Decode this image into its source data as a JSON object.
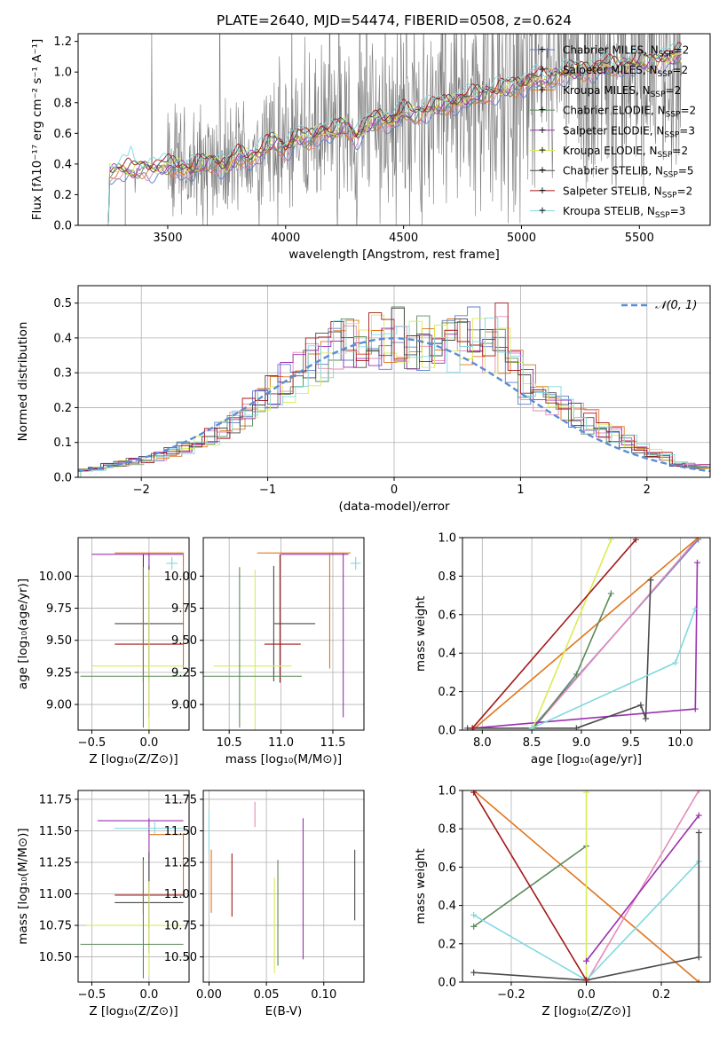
{
  "title": "PLATE=2640, MJD=54474, FIBERID=0508, z=0.624",
  "colors": {
    "chabrier_miles": "#5b7fd0",
    "salpeter_miles": "#e58ab7",
    "kroupa_miles": "#e0751c",
    "chabrier_elodie": "#5b8a5b",
    "salpeter_elodie": "#9b30b0",
    "kroupa_elodie": "#d9ec55",
    "chabrier_stelib": "#4a4a4a",
    "salpeter_stelib": "#a31818",
    "kroupa_stelib": "#80d8e0",
    "data": "#777777"
  },
  "chart_data": [
    {
      "id": "spectrum",
      "type": "line",
      "xlabel": "wavelength [Angstrom, rest frame]",
      "ylabel": "Flux [fλ10⁻¹⁷ erg cm⁻² s⁻¹ A⁻¹]",
      "xlim": [
        3120,
        5800
      ],
      "ylim": [
        0,
        1.25
      ],
      "xticks": [
        3500,
        4000,
        4500,
        5000,
        5500
      ],
      "yticks": [
        0.0,
        0.2,
        0.4,
        0.6,
        0.8,
        1.0,
        1.2
      ],
      "grid": false,
      "legend_position": "top-right",
      "legend": [
        {
          "key": "chabrier_miles",
          "label": "Chabrier MILES, N",
          "sub": "SSP",
          "tail": "=2"
        },
        {
          "key": "salpeter_miles",
          "label": "Salpeter MILES, N",
          "sub": "SSP",
          "tail": "=2"
        },
        {
          "key": "kroupa_miles",
          "label": "Kroupa MILES, N",
          "sub": "SSP",
          "tail": "=2"
        },
        {
          "key": "chabrier_elodie",
          "label": "Chabrier ELODIE, N",
          "sub": "SSP",
          "tail": "=2"
        },
        {
          "key": "salpeter_elodie",
          "label": "Salpeter ELODIE, N",
          "sub": "SSP",
          "tail": "=3"
        },
        {
          "key": "kroupa_elodie",
          "label": "Kroupa ELODIE, N",
          "sub": "SSP",
          "tail": "=2"
        },
        {
          "key": "chabrier_stelib",
          "label": "Chabrier STELIB, N",
          "sub": "SSP",
          "tail": "=5"
        },
        {
          "key": "salpeter_stelib",
          "label": "Salpeter STELIB, N",
          "sub": "SSP",
          "tail": "=2"
        },
        {
          "key": "kroupa_stelib",
          "label": "Kroupa STELIB, N",
          "sub": "SSP",
          "tail": "=3"
        }
      ],
      "model_continuum": {
        "x": [
          3200,
          3250,
          3300,
          3350,
          3400,
          3450,
          3500,
          3550,
          3600,
          3650,
          3700,
          3750,
          3800,
          3850,
          3900,
          3950,
          4000,
          4050,
          4100,
          4150,
          4200,
          4250,
          4300,
          4350,
          4400,
          4450,
          4500,
          4550,
          4600,
          4650,
          4700,
          4750,
          4800,
          4850,
          4900,
          4950,
          5000,
          5050,
          5100,
          5150,
          5200,
          5250,
          5300,
          5350,
          5400,
          5450,
          5500,
          5550,
          5600,
          5650,
          5680
        ],
        "y": [
          0.0,
          0.34,
          0.37,
          0.35,
          0.38,
          0.37,
          0.39,
          0.38,
          0.36,
          0.4,
          0.42,
          0.38,
          0.46,
          0.44,
          0.48,
          0.55,
          0.5,
          0.58,
          0.56,
          0.62,
          0.6,
          0.65,
          0.58,
          0.66,
          0.7,
          0.68,
          0.74,
          0.72,
          0.76,
          0.78,
          0.8,
          0.82,
          0.84,
          0.86,
          0.88,
          0.9,
          0.92,
          0.96,
          0.95,
          0.98,
          1.0,
          1.01,
          1.02,
          1.04,
          1.03,
          1.05,
          1.07,
          1.06,
          1.09,
          1.1,
          1.12
        ]
      }
    },
    {
      "id": "residuals",
      "type": "bar",
      "xlabel": "(data-model)/error",
      "ylabel": "Normed distribution",
      "xlim": [
        -2.5,
        2.5
      ],
      "ylim": [
        0,
        0.55
      ],
      "xticks": [
        -2,
        -1,
        0,
        1,
        2
      ],
      "yticks": [
        0.0,
        0.1,
        0.2,
        0.3,
        0.4,
        0.5
      ],
      "grid": true,
      "legend_position": "top-right",
      "gaussian_label": "𝒩(0, 1)",
      "bin_edges": [
        -2.5,
        -2.4,
        -2.3,
        -2.2,
        -2.1,
        -2.0,
        -1.9,
        -1.8,
        -1.7,
        -1.6,
        -1.5,
        -1.4,
        -1.3,
        -1.2,
        -1.1,
        -1.0,
        -0.9,
        -0.8,
        -0.7,
        -0.6,
        -0.5,
        -0.4,
        -0.3,
        -0.2,
        -0.1,
        0.0,
        0.1,
        0.2,
        0.3,
        0.4,
        0.5,
        0.6,
        0.7,
        0.8,
        0.9,
        1.0,
        1.1,
        1.2,
        1.3,
        1.4,
        1.5,
        1.6,
        1.7,
        1.8,
        1.9,
        2.0,
        2.1,
        2.2,
        2.3,
        2.4,
        2.5
      ],
      "histogram_mean": [
        0.02,
        0.025,
        0.035,
        0.04,
        0.045,
        0.05,
        0.06,
        0.07,
        0.085,
        0.1,
        0.115,
        0.14,
        0.16,
        0.19,
        0.21,
        0.24,
        0.27,
        0.3,
        0.33,
        0.35,
        0.37,
        0.39,
        0.4,
        0.4,
        0.39,
        0.4,
        0.39,
        0.38,
        0.37,
        0.38,
        0.39,
        0.4,
        0.38,
        0.35,
        0.3,
        0.27,
        0.24,
        0.22,
        0.2,
        0.18,
        0.16,
        0.14,
        0.12,
        0.1,
        0.08,
        0.07,
        0.06,
        0.04,
        0.035,
        0.03
      ]
    },
    {
      "id": "age_vs_Z",
      "type": "scatter",
      "xlabel": "Z [log₁₀(Z/Z⊙)]",
      "ylabel": "age  [log₁₀(age/yr)]",
      "xlim": [
        -0.62,
        0.35
      ],
      "ylim": [
        8.8,
        10.3
      ],
      "xticks": [
        -0.5,
        0.0
      ],
      "yticks": [
        9.0,
        9.25,
        9.5,
        9.75,
        10.0
      ],
      "grid": true,
      "errorbars": [
        {
          "key": "salpeter_elodie",
          "x": 0.0,
          "y": 10.17,
          "xerr": [
            0.5,
            0.3
          ],
          "yerr": [
            1.27,
            0.01
          ]
        },
        {
          "key": "kroupa_miles",
          "x": 0.3,
          "y": 10.18,
          "xerr": [
            0.6,
            0.0
          ],
          "yerr": [
            0.9,
            0.0
          ]
        },
        {
          "key": "chabrier_stelib",
          "x": 0.0,
          "y": 9.63,
          "xerr": [
            0.3,
            0.3
          ],
          "yerr": [
            0.45,
            0.45
          ]
        },
        {
          "key": "salpeter_stelib",
          "x": -0.05,
          "y": 9.47,
          "xerr": [
            0.25,
            0.35
          ],
          "yerr": [
            0.3,
            0.7
          ]
        },
        {
          "key": "kroupa_elodie",
          "x": 0.0,
          "y": 9.3,
          "xerr": [
            0.5,
            0.3
          ],
          "yerr": [
            0.5,
            0.75
          ]
        },
        {
          "key": "chabrier_elodie",
          "x": -0.05,
          "y": 9.22,
          "xerr": [
            0.55,
            0.35
          ],
          "yerr": [
            0.4,
            0.85
          ]
        },
        {
          "key": "kroupa_stelib",
          "x": 0.2,
          "y": 10.1,
          "xerr": [
            0.05,
            0.05
          ],
          "yerr": [
            0.05,
            0.05
          ]
        }
      ]
    },
    {
      "id": "age_vs_mass",
      "type": "scatter",
      "xlabel": "mass [log₁₀(M/M⊙)]",
      "xlim": [
        10.25,
        11.8
      ],
      "ylim": [
        8.8,
        10.3
      ],
      "xticks": [
        10.5,
        11.0,
        11.5
      ],
      "yticks": [
        9.0,
        9.25,
        9.5,
        9.75,
        10.0
      ],
      "grid": true,
      "errorbars": [
        {
          "key": "salpeter_elodie",
          "x": 11.6,
          "y": 10.17,
          "xerr": [
            0.6,
            0.05
          ],
          "yerr": [
            1.27,
            0.01
          ]
        },
        {
          "key": "kroupa_miles",
          "x": 11.47,
          "y": 10.18,
          "xerr": [
            0.7,
            0.2
          ],
          "yerr": [
            0.9,
            0.0
          ]
        },
        {
          "key": "chabrier_stelib",
          "x": 10.93,
          "y": 9.63,
          "xerr": [
            0.0,
            0.4
          ],
          "yerr": [
            0.45,
            0.45
          ]
        },
        {
          "key": "salpeter_stelib",
          "x": 10.99,
          "y": 9.47,
          "xerr": [
            0.15,
            0.2
          ],
          "yerr": [
            0.3,
            0.7
          ]
        },
        {
          "key": "kroupa_elodie",
          "x": 10.75,
          "y": 9.3,
          "xerr": [
            0.4,
            0.35
          ],
          "yerr": [
            0.5,
            0.75
          ]
        },
        {
          "key": "chabrier_elodie",
          "x": 10.6,
          "y": 9.22,
          "xerr": [
            0.35,
            0.6
          ],
          "yerr": [
            0.4,
            0.85
          ]
        },
        {
          "key": "kroupa_stelib",
          "x": 11.72,
          "y": 10.1,
          "xerr": [
            0.05,
            0.05
          ],
          "yerr": [
            0.05,
            0.05
          ]
        }
      ]
    },
    {
      "id": "weight_vs_age",
      "type": "line",
      "xlabel": "age  [log₁₀(age/yr)]",
      "ylabel": "mass weight",
      "xlim": [
        7.8,
        10.3
      ],
      "ylim": [
        0,
        1.0
      ],
      "xticks": [
        8.0,
        8.5,
        9.0,
        9.5,
        10.0
      ],
      "yticks": [
        0.0,
        0.2,
        0.4,
        0.6,
        0.8,
        1.0
      ],
      "grid": true,
      "series": [
        {
          "key": "chabrier_miles",
          "x": [
            8.5,
            10.18
          ],
          "y": [
            0.01,
            0.99
          ]
        },
        {
          "key": "salpeter_miles",
          "x": [
            8.5,
            10.18
          ],
          "y": [
            0.0,
            1.0
          ]
        },
        {
          "key": "kroupa_miles",
          "x": [
            7.9,
            10.18
          ],
          "y": [
            0.0,
            1.0
          ]
        },
        {
          "key": "chabrier_elodie",
          "x": [
            8.5,
            8.95,
            9.3
          ],
          "y": [
            0.0,
            0.29,
            0.71
          ]
        },
        {
          "key": "salpeter_elodie",
          "x": [
            7.9,
            10.15,
            10.17
          ],
          "y": [
            0.01,
            0.11,
            0.87
          ]
        },
        {
          "key": "kroupa_elodie",
          "x": [
            8.5,
            9.3
          ],
          "y": [
            0.0,
            0.99
          ]
        },
        {
          "key": "chabrier_stelib",
          "x": [
            7.85,
            8.95,
            9.6,
            9.65,
            9.7
          ],
          "y": [
            0.01,
            0.01,
            0.13,
            0.06,
            0.78
          ]
        },
        {
          "key": "salpeter_stelib",
          "x": [
            7.9,
            9.55
          ],
          "y": [
            0.01,
            0.99
          ]
        },
        {
          "key": "kroupa_stelib",
          "x": [
            8.5,
            9.95,
            10.15
          ],
          "y": [
            0.01,
            0.35,
            0.63
          ]
        }
      ]
    },
    {
      "id": "mass_vs_Z",
      "type": "scatter",
      "xlabel": "Z [log₁₀(Z/Z⊙)]",
      "ylabel": "mass [log₁₀(M/M⊙)]",
      "xlim": [
        -0.62,
        0.35
      ],
      "ylim": [
        10.3,
        11.82
      ],
      "xticks": [
        -0.5,
        0.0
      ],
      "yticks": [
        10.5,
        10.75,
        11.0,
        11.25,
        11.5,
        11.75
      ],
      "grid": true,
      "errorbars": [
        {
          "key": "salpeter_miles",
          "x": 0.25,
          "y": 11.72,
          "xerr": [
            0.05,
            0.05
          ],
          "yerr": [
            0.0,
            0.0
          ]
        },
        {
          "key": "salpeter_elodie",
          "x": 0.0,
          "y": 11.58,
          "xerr": [
            0.45,
            0.3
          ],
          "yerr": [
            1.05,
            0.02
          ]
        },
        {
          "key": "kroupa_stelib",
          "x": 0.05,
          "y": 11.52,
          "xerr": [
            0.35,
            0.25
          ],
          "yerr": [
            0.05,
            0.05
          ]
        },
        {
          "key": "kroupa_miles",
          "x": 0.3,
          "y": 11.47,
          "xerr": [
            0.3,
            0.0
          ],
          "yerr": [
            0.5,
            0.0
          ]
        },
        {
          "key": "chabrier_stelib",
          "x": 0.0,
          "y": 10.93,
          "xerr": [
            0.3,
            0.3
          ],
          "yerr": [
            0.2,
            0.4
          ]
        },
        {
          "key": "salpeter_stelib",
          "x": -0.05,
          "y": 10.99,
          "xerr": [
            0.25,
            0.35
          ],
          "yerr": [
            0.15,
            0.3
          ]
        },
        {
          "key": "kroupa_elodie",
          "x": 0.0,
          "y": 10.75,
          "xerr": [
            0.55,
            0.3
          ],
          "yerr": [
            0.4,
            0.35
          ]
        },
        {
          "key": "chabrier_elodie",
          "x": -0.05,
          "y": 10.6,
          "xerr": [
            0.55,
            0.35
          ],
          "yerr": [
            0.27,
            0.67
          ]
        }
      ]
    },
    {
      "id": "mass_vs_ebv",
      "type": "scatter",
      "xlabel": "E(B-V)",
      "xlim": [
        -0.005,
        0.135
      ],
      "ylim": [
        10.3,
        11.82
      ],
      "xticks": [
        0.0,
        0.05,
        0.1
      ],
      "yticks": [
        10.5,
        10.75,
        11.0,
        11.25,
        11.5,
        11.75
      ],
      "grid": true,
      "errorbars": [
        {
          "key": "kroupa_stelib",
          "x": 0.0,
          "y": 11.52,
          "xerr": [
            0.0,
            0.0
          ],
          "yerr": [
            0.18,
            0.14
          ]
        },
        {
          "key": "kroupa_miles",
          "x": 0.002,
          "y": 11.1,
          "xerr": [
            0.0,
            0.0
          ],
          "yerr": [
            0.25,
            0.25
          ]
        },
        {
          "key": "salpeter_miles",
          "x": 0.04,
          "y": 11.63,
          "xerr": [
            0.0,
            0.0
          ],
          "yerr": [
            0.1,
            0.1
          ]
        },
        {
          "key": "salpeter_stelib",
          "x": 0.02,
          "y": 11.07,
          "xerr": [
            0.0,
            0.0
          ],
          "yerr": [
            0.25,
            0.25
          ]
        },
        {
          "key": "kroupa_elodie",
          "x": 0.057,
          "y": 10.75,
          "xerr": [
            0.0,
            0.0
          ],
          "yerr": [
            0.38,
            0.38
          ]
        },
        {
          "key": "chabrier_elodie",
          "x": 0.06,
          "y": 10.85,
          "xerr": [
            0.0,
            0.0
          ],
          "yerr": [
            0.42,
            0.42
          ]
        },
        {
          "key": "salpeter_elodie",
          "x": 0.082,
          "y": 11.0,
          "xerr": [
            0.0,
            0.0
          ],
          "yerr": [
            0.52,
            0.6
          ]
        },
        {
          "key": "chabrier_stelib",
          "x": 0.127,
          "y": 11.07,
          "xerr": [
            0.0,
            0.0
          ],
          "yerr": [
            0.28,
            0.28
          ]
        }
      ]
    },
    {
      "id": "weight_vs_Z",
      "type": "line",
      "xlabel": "Z [log₁₀(Z/Z⊙)]",
      "ylabel": "mass weight",
      "xlim": [
        -0.33,
        0.33
      ],
      "ylim": [
        0,
        1.0
      ],
      "xticks": [
        -0.2,
        0.0,
        0.2
      ],
      "yticks": [
        0.0,
        0.2,
        0.4,
        0.6,
        0.8,
        1.0
      ],
      "grid": true,
      "series": [
        {
          "key": "kroupa_miles",
          "x": [
            -0.3,
            0.3
          ],
          "y": [
            1.0,
            0.0
          ]
        },
        {
          "key": "salpeter_miles",
          "x": [
            0.0,
            0.3
          ],
          "y": [
            0.0,
            1.0
          ]
        },
        {
          "key": "chabrier_elodie",
          "x": [
            -0.3,
            0.0
          ],
          "y": [
            0.29,
            0.71
          ]
        },
        {
          "key": "kroupa_elodie",
          "x": [
            0.0,
            0.0
          ],
          "y": [
            0.0,
            0.99
          ]
        },
        {
          "key": "salpeter_elodie",
          "x": [
            0.0,
            0.3
          ],
          "y": [
            0.11,
            0.87
          ]
        },
        {
          "key": "kroupa_stelib",
          "x": [
            -0.3,
            0.0,
            0.3
          ],
          "y": [
            0.35,
            0.01,
            0.63
          ]
        },
        {
          "key": "chabrier_stelib",
          "x": [
            -0.3,
            0.0,
            0.3,
            0.3
          ],
          "y": [
            0.05,
            0.01,
            0.13,
            0.78
          ]
        },
        {
          "key": "salpeter_stelib",
          "x": [
            -0.3,
            0.0
          ],
          "y": [
            0.99,
            0.01
          ]
        }
      ]
    }
  ]
}
